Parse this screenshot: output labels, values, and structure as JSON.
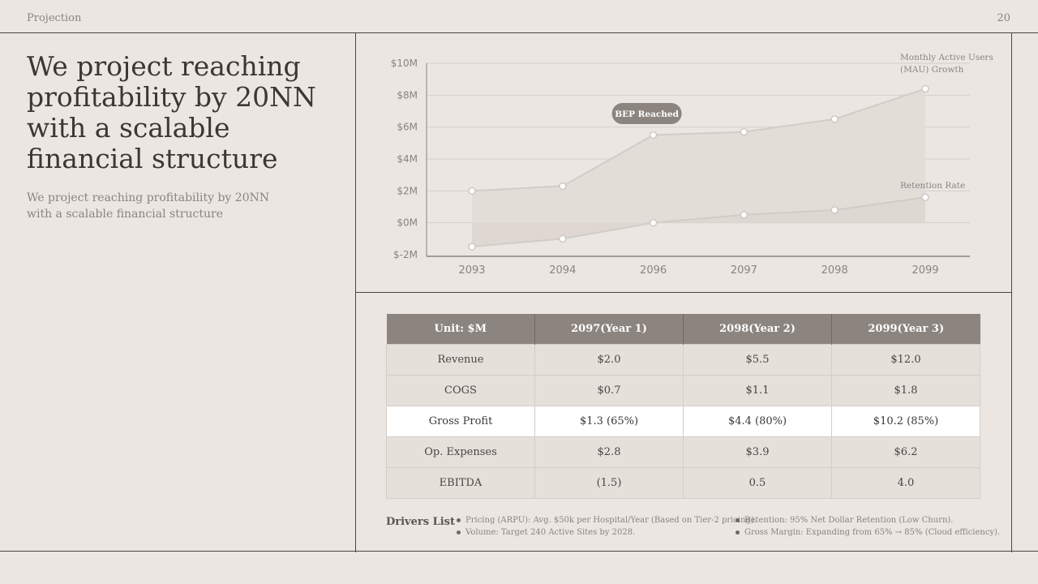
{
  "header": {
    "section": "Projection",
    "page_number": "20"
  },
  "headline": {
    "title": "We project reaching profitability by 20NN with a scalable financial structure",
    "subtitle": "We project reaching profitability by 20NN with a scalable financial structure"
  },
  "chart_data": {
    "type": "area",
    "categories": [
      "2093",
      "2094",
      "2096",
      "2097",
      "2098",
      "2099"
    ],
    "series": [
      {
        "name": "Monthly Active Users (MAU) Growth",
        "values": [
          2.0,
          2.3,
          5.5,
          5.7,
          6.5,
          8.4
        ],
        "color": "#d3ccc6"
      },
      {
        "name": "Retention Rate",
        "values": [
          -1.5,
          -1.0,
          0.0,
          0.5,
          0.8,
          1.6
        ],
        "color": "#d3ccc6"
      }
    ],
    "yticks": [
      "$10M",
      "$8M",
      "$6M",
      "$4M",
      "$2M",
      "$0M",
      "$-2M"
    ],
    "ytick_values": [
      10,
      8,
      6,
      4,
      2,
      0,
      -2
    ],
    "ylim": [
      -2,
      10
    ],
    "grid": true,
    "annotation": {
      "text": "BEP Reached",
      "category": "2096"
    }
  },
  "table": {
    "headers": [
      "Unit: $M",
      "2097(Year 1)",
      "2098(Year 2)",
      "2099(Year 3)"
    ],
    "rows": [
      [
        "Revenue",
        "$2.0",
        "$5.5",
        "$12.0"
      ],
      [
        "COGS",
        "$0.7",
        "$1.1",
        "$1.8"
      ],
      [
        "Gross Profit",
        "$1.3 (65%)",
        "$4.4 (80%)",
        "$10.2 (85%)"
      ],
      [
        "Op. Expenses",
        "$2.8",
        "$3.9",
        "$6.2"
      ],
      [
        "EBITDA",
        "(1.5)",
        "0.5",
        "4.0"
      ]
    ],
    "highlight_row": 2
  },
  "drivers": {
    "label": "Drivers List",
    "left": [
      "Pricing (ARPU): Avg. $50k per Hospital/Year (Based on Tier-2 pricing).",
      "Volume: Target 240 Active Sites by 2028."
    ],
    "right": [
      "Retention: 95% Net Dollar Retention (Low Churn).",
      "Gross Margin: Expanding from 65% → 85% (Cloud efficiency)."
    ]
  },
  "colors": {
    "background": "#ebe6e2",
    "header_fill": "#8c847e",
    "badge": "#8c847e",
    "line": "#d3ccc6"
  }
}
